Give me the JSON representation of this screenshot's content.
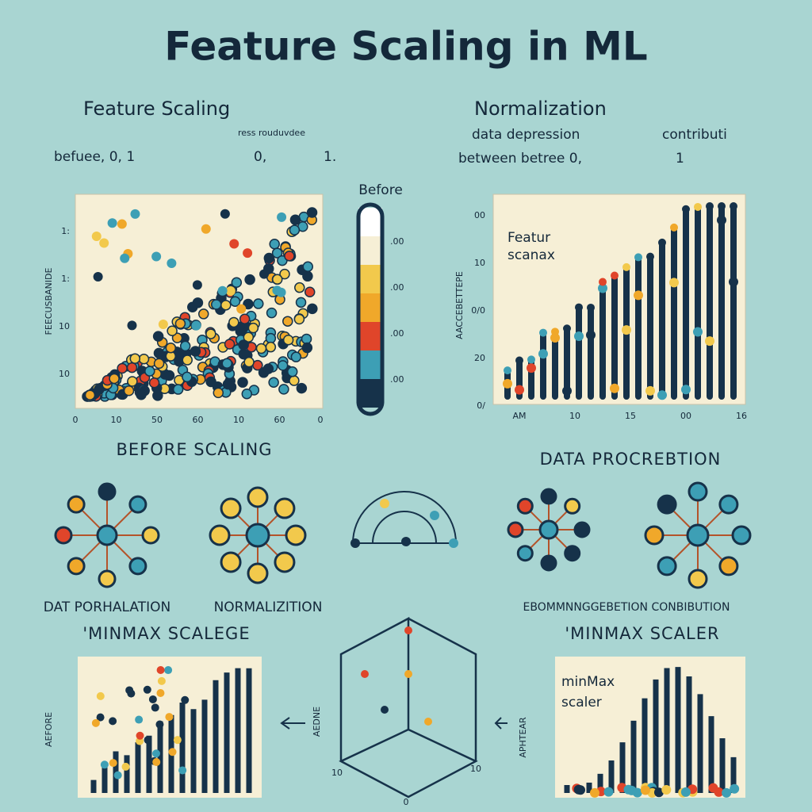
{
  "title": "Feature Scaling in ML",
  "top_left": {
    "heading": "Feature   Scaling",
    "line1": "ress rouduvdee",
    "line2": "befuee, 0, 1",
    "line2b": "0,",
    "line2c": "1."
  },
  "top_right": {
    "heading": "Normalization",
    "line1": "data depression",
    "line1b": "contributi",
    "line2": "between betree 0,",
    "line2b": "1"
  },
  "before_chart": {
    "y_label": "FEECUSBANIDE",
    "x_ticks": [
      "0",
      "10",
      "50",
      "60",
      "10",
      "60",
      "0"
    ],
    "y_ticks": [
      "1:",
      "1:",
      "10",
      "10"
    ]
  },
  "colorbar": {
    "title": "Before",
    "ticks": [
      ".00",
      ".00",
      ".00",
      ".00"
    ]
  },
  "after_chart": {
    "annotation": [
      "Featur",
      "scanax"
    ],
    "y_label": "AACCEBETTEPE",
    "y_ticks": [
      "00",
      "10",
      "0/0",
      "20",
      "0/"
    ],
    "x_ticks": [
      "AM",
      "10",
      "15",
      "00",
      "16"
    ]
  },
  "labels": {
    "before_scaling": "BEFORE SCALING",
    "data_procrebtion": "DATA PROCREBTION",
    "dat_porhalation": "DAT PORHALATION",
    "normalizition": "NORMALIZITION",
    "combination": "EBOMMNNGGEBETION CONBIBUTION",
    "minmax_left": "'MINMAX SCALEGE",
    "minmax_right": "'MINMAX SCALER"
  },
  "bottom_left": {
    "y_label": "AEFORE"
  },
  "bottom_middle": {
    "y_label": "AEDNE",
    "x_ticks": [
      "10",
      "10",
      "0"
    ]
  },
  "bottom_right": {
    "annotation": [
      "minMax",
      "scaler"
    ],
    "y_label": "APHTEAR"
  }
}
